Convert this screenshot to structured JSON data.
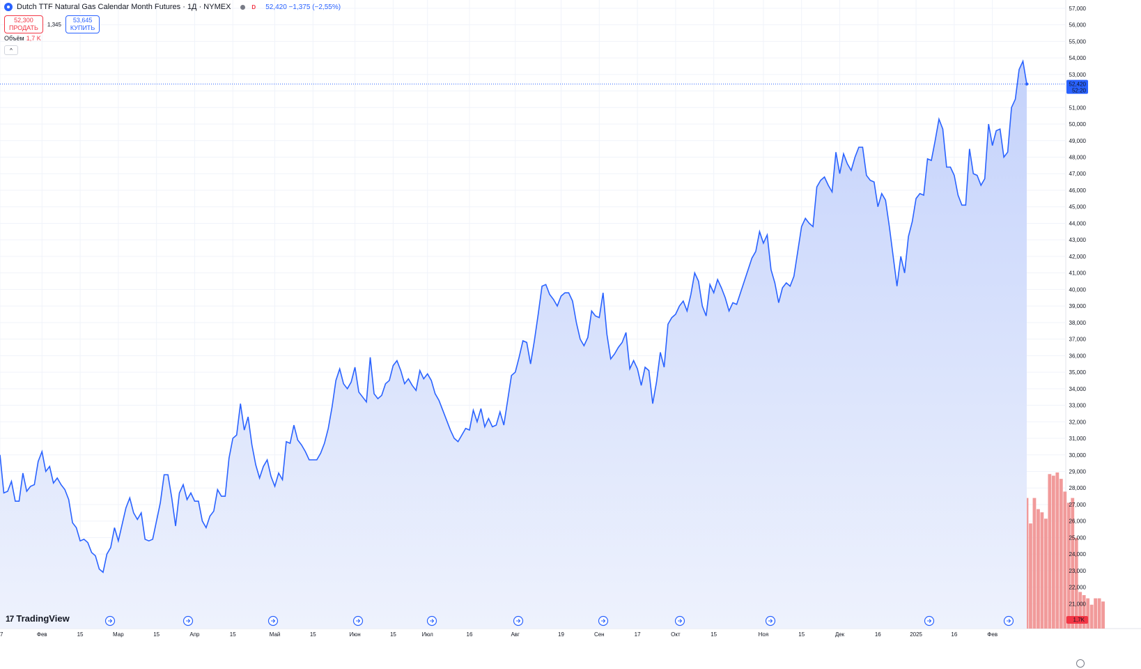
{
  "header": {
    "title": "Dutch TTF Natural Gas Calendar Month Futures · 1Д · NYMEX",
    "badge": "D",
    "price_info": "52,420  −1,375 (−2,55%)"
  },
  "trade": {
    "sell_price": "52,300",
    "sell_label": "ПРОДАТЬ",
    "spread": "1,345",
    "buy_price": "53,645",
    "buy_label": "КУПИТЬ"
  },
  "volume_legend": {
    "label": "Объём",
    "value": "1,7 K"
  },
  "collapse_glyph": "^",
  "logo": {
    "mark": "17",
    "text": "TradingView"
  },
  "price_axis": {
    "current_price": "52,420",
    "countdown": "52:20",
    "volume_tag": "1,7K"
  },
  "colors": {
    "line": "#2962ff",
    "area_top": "#c4d2fb",
    "area_bottom": "#eef2fd",
    "vol_up": "#7fcbc2",
    "vol_down": "#f19a9a",
    "current_price_tag": "#2962ff",
    "volume_tag": "#f23645",
    "grid": "#f0f3fa"
  },
  "chart_data": {
    "type": "area",
    "x_start": "17 янв",
    "y_range": [
      19500,
      57500
    ],
    "y_ticks": [
      "20,000",
      "21,000",
      "22,000",
      "23,000",
      "24,000",
      "25,000",
      "26,000",
      "27,000",
      "28,000",
      "29,000",
      "30,000",
      "31,000",
      "32,000",
      "33,000",
      "34,000",
      "35,000",
      "36,000",
      "37,000",
      "38,000",
      "39,000",
      "40,000",
      "41,000",
      "42,000",
      "43,000",
      "44,000",
      "45,000",
      "46,000",
      "47,000",
      "48,000",
      "49,000",
      "50,000",
      "51,000",
      "52,000",
      "53,000",
      "54,000",
      "55,000",
      "56,000",
      "57,000"
    ],
    "x_ticks": [
      {
        "label": "17",
        "i": 0
      },
      {
        "label": "Фев",
        "i": 11
      },
      {
        "label": "15",
        "i": 21
      },
      {
        "label": "Мар",
        "i": 31
      },
      {
        "label": "15",
        "i": 41
      },
      {
        "label": "Апр",
        "i": 51
      },
      {
        "label": "15",
        "i": 61
      },
      {
        "label": "Май",
        "i": 72
      },
      {
        "label": "15",
        "i": 82
      },
      {
        "label": "Июн",
        "i": 93
      },
      {
        "label": "15",
        "i": 103
      },
      {
        "label": "Июл",
        "i": 112
      },
      {
        "label": "16",
        "i": 123
      },
      {
        "label": "Авг",
        "i": 135
      },
      {
        "label": "19",
        "i": 147
      },
      {
        "label": "Сен",
        "i": 157
      },
      {
        "label": "17",
        "i": 167
      },
      {
        "label": "Окт",
        "i": 177
      },
      {
        "label": "15",
        "i": 187
      },
      {
        "label": "Ноя",
        "i": 200
      },
      {
        "label": "15",
        "i": 210
      },
      {
        "label": "Дек",
        "i": 220
      },
      {
        "label": "16",
        "i": 230
      },
      {
        "label": "2025",
        "i": 240
      },
      {
        "label": "16",
        "i": 250
      },
      {
        "label": "Фев",
        "i": 260
      }
    ],
    "close": [
      30000,
      27700,
      27800,
      28400,
      27200,
      27200,
      28900,
      27800,
      28100,
      28200,
      29600,
      30200,
      29000,
      29300,
      28300,
      28600,
      28200,
      27900,
      27300,
      25900,
      25600,
      24800,
      24900,
      24700,
      24100,
      23900,
      23100,
      22900,
      24000,
      24400,
      25600,
      24800,
      25800,
      26800,
      27400,
      26500,
      26100,
      26500,
      24900,
      24800,
      24900,
      26000,
      27100,
      28800,
      28800,
      27400,
      25700,
      27700,
      28200,
      27300,
      27700,
      27200,
      27200,
      26000,
      25600,
      26300,
      26600,
      27900,
      27500,
      27500,
      29800,
      31000,
      31200,
      33100,
      31500,
      32300,
      30600,
      29400,
      28600,
      29300,
      29700,
      28700,
      28100,
      28900,
      28500,
      30800,
      30700,
      31800,
      30900,
      30600,
      30200,
      29700,
      29700,
      29700,
      30100,
      30700,
      31600,
      32900,
      34500,
      35200,
      34300,
      34000,
      34400,
      35300,
      33800,
      33500,
      33200,
      35900,
      33700,
      33400,
      33600,
      34300,
      34500,
      35400,
      35700,
      35100,
      34300,
      34600,
      34200,
      33900,
      35100,
      34600,
      34900,
      34500,
      33700,
      33300,
      32700,
      32100,
      31500,
      31000,
      30800,
      31200,
      31600,
      31500,
      32700,
      32000,
      32800,
      31700,
      32200,
      31700,
      31800,
      32600,
      31800,
      33300,
      34800,
      35000,
      35900,
      36900,
      36800,
      35500,
      36900,
      38500,
      40200,
      40300,
      39700,
      39400,
      39000,
      39600,
      39800,
      39800,
      39300,
      38000,
      37000,
      36600,
      37100,
      38700,
      38400,
      38300,
      39800,
      37300,
      35800,
      36100,
      36500,
      36800,
      37400,
      35200,
      35700,
      35200,
      34200,
      35300,
      35100,
      33100,
      34400,
      36200,
      35300,
      37900,
      38300,
      38500,
      39000,
      39300,
      38700,
      39700,
      41000,
      40500,
      39000,
      38400,
      40300,
      39800,
      40600,
      40100,
      39500,
      38700,
      39200,
      39100,
      39800,
      40500,
      41200,
      41900,
      42300,
      43500,
      42800,
      43300,
      41200,
      40400,
      39200,
      40100,
      40400,
      40200,
      40800,
      42300,
      43800,
      44300,
      44000,
      43800,
      46200,
      46600,
      46800,
      46300,
      45900,
      48300,
      47000,
      48200,
      47600,
      47200,
      48000,
      48600,
      48600,
      46900,
      46600,
      46500,
      45000,
      45800,
      45400,
      43800,
      42000,
      40200,
      42000,
      41000,
      43200,
      44100,
      45500,
      45800,
      45700,
      47900,
      47800,
      49000,
      50300,
      49700,
      47400,
      47400,
      46900,
      45700,
      45100,
      45100,
      48500,
      47000,
      46900,
      46300,
      46700,
      50000,
      48700,
      49600,
      49700,
      48000,
      48300,
      51000,
      51500,
      53300,
      53800,
      52420
    ],
    "volume_k": [
      0.1,
      0.1,
      0.2,
      0.1,
      0.1,
      0.2,
      0.1,
      0.1,
      0.2,
      0.1,
      0.1,
      0.2,
      0.2,
      0.1,
      0.2,
      0.1,
      0.1,
      0.2,
      0.1,
      0.3,
      0.1,
      0.2,
      0.2,
      0.1,
      0.1,
      0.2,
      0.2,
      0.1,
      0.3,
      0.1,
      0.2,
      0.1,
      0.2,
      0.1,
      0.3,
      0.3,
      0.1,
      0.2,
      0.3,
      0.3,
      0.4,
      0.5,
      0.4,
      0.2,
      0.2,
      0.3,
      0.1,
      0.2,
      0.1,
      0.3,
      0.2,
      0.3,
      0.2,
      0.1,
      0.2,
      0.2,
      0.1,
      0.3,
      0.2,
      0.4,
      0.5,
      0.3,
      0.2,
      0.4,
      0.6,
      0.3,
      0.2,
      0.3,
      0.4,
      0.2,
      0.3,
      0.5,
      0.2,
      0.6,
      0.4,
      0.3,
      0.5,
      0.3,
      0.4,
      0.6,
      0.5,
      0.5,
      0.4,
      0.4,
      0.3,
      0.5,
      0.4,
      0.5,
      0.3,
      0.2,
      0.4,
      0.3,
      0.4,
      0.2,
      0.5,
      0.4,
      0.6,
      0.3,
      0.2,
      0.4,
      0.3,
      0.5,
      0.2,
      0.4,
      0.6,
      0.2,
      0.4,
      0.3,
      0.4,
      0.2,
      0.3,
      0.6,
      0.2,
      0.3,
      0.4,
      0.4,
      0.3,
      0.5,
      0.2,
      0.3,
      0.3,
      0.2,
      0.4,
      0.2,
      0.3,
      0.4,
      0.5,
      0.4,
      0.3,
      0.3,
      0.4,
      0.2,
      0.2,
      0.5,
      0.3,
      0.4,
      0.5,
      0.3,
      0.4,
      0.2,
      0.3,
      0.5,
      0.3,
      0.4,
      0.3,
      0.2,
      0.6,
      0.4,
      0.3,
      0.4,
      0.5,
      0.3,
      0.2,
      0.3,
      0.3,
      0.2,
      0.4,
      0.6,
      0.3,
      0.2,
      0.3,
      0.5,
      0.4,
      0.2,
      0.3,
      0.4,
      0.5,
      0.2,
      0.3,
      0.4,
      0.3,
      0.5,
      0.2,
      0.3,
      0.4,
      0.6,
      0.3,
      0.3,
      0.5,
      0.4,
      0.4,
      0.2,
      0.3,
      0.6,
      0.4,
      0.3,
      0.5,
      0.4,
      0.3,
      0.6,
      0.5,
      0.4,
      0.3,
      0.7,
      0.4,
      0.6,
      0.8,
      0.9,
      1.0,
      1.4,
      1.9,
      2.3,
      2.5,
      2.6,
      2.9,
      2.7,
      3.2,
      3.1,
      3.5,
      3.7,
      4.0,
      5.2,
      5.2,
      5.3,
      4.6,
      5.8,
      5.3,
      6.1,
      6.3,
      6.9,
      4.3,
      5.2,
      7.1,
      6.7,
      7.5,
      8.3,
      4.5,
      3.4,
      3.2,
      2.1,
      0.9,
      0.5,
      0.4,
      0.9,
      1.3,
      1.6,
      2.2,
      2.0,
      2.6,
      3.6,
      4.1,
      4.0,
      3.3,
      4.5,
      5.5,
      4.7,
      5.9,
      6.3,
      5.6,
      6.4,
      6.6,
      6.4,
      4.5,
      3.6,
      3.1,
      1.6,
      2.0,
      2.0,
      1.8,
      1.5,
      1.6,
      2.3,
      3.0,
      4.5,
      5.0,
      4.6,
      5.8,
      6.2,
      7.8,
      8.2,
      6.6,
      8.2,
      7.5,
      7.3,
      6.9,
      9.7,
      9.6,
      9.8,
      9.4,
      8.6,
      7.9,
      8.2,
      5.7,
      2.3,
      2.1,
      1.9,
      1.5,
      1.9,
      1.9,
      1.7
    ],
    "volume_up": [
      true,
      false,
      true,
      true,
      false,
      true,
      false,
      true,
      true,
      false,
      true,
      true,
      false,
      true,
      false,
      true,
      false,
      false,
      false,
      false,
      false,
      false,
      true,
      false,
      false,
      false,
      false,
      false,
      true,
      true,
      true,
      false,
      true,
      true,
      true,
      false,
      false,
      true,
      false,
      false,
      true,
      true,
      true,
      true,
      false,
      false,
      false,
      true,
      true,
      false,
      true,
      false,
      false,
      false,
      false,
      true,
      true,
      true,
      false,
      false,
      true,
      true,
      true,
      true,
      false,
      true,
      false,
      false,
      false,
      true,
      true,
      false,
      false,
      true,
      false,
      true,
      false,
      true,
      false,
      false,
      false,
      false,
      false,
      false,
      true,
      true,
      true,
      true,
      true,
      true,
      false,
      false,
      true,
      true,
      false,
      false,
      false,
      true,
      false,
      false,
      true,
      true,
      true,
      true,
      true,
      false,
      false,
      true,
      false,
      false,
      true,
      false,
      true,
      false,
      false,
      false,
      false,
      false,
      false,
      false,
      false,
      true,
      true,
      false,
      true,
      false,
      true,
      false,
      true,
      false,
      true,
      true,
      false,
      true,
      true,
      true,
      true,
      true,
      false,
      false,
      true,
      true,
      true,
      true,
      false,
      false,
      false,
      true,
      true,
      false,
      false,
      false,
      false,
      false,
      true,
      true,
      false,
      false,
      true,
      false,
      false,
      true,
      true,
      true,
      true,
      false,
      true,
      false,
      false,
      true,
      false,
      false,
      true,
      true,
      false,
      true,
      true,
      true,
      true,
      true,
      false,
      true,
      true,
      false,
      false,
      false,
      true,
      false,
      true,
      false,
      false,
      false,
      true,
      false,
      true,
      true,
      true,
      true,
      true,
      true,
      false,
      true,
      false,
      false,
      false,
      true,
      true,
      false,
      true,
      true,
      true,
      true,
      false,
      false,
      true,
      true,
      true,
      false,
      false,
      true,
      false,
      true,
      false,
      false,
      true,
      true,
      true,
      false,
      false,
      false,
      false,
      true,
      false,
      false,
      false,
      false,
      true,
      false,
      true,
      true,
      true,
      true,
      false,
      true,
      false,
      true,
      true,
      false,
      false,
      false,
      false,
      false,
      false,
      true,
      false,
      false,
      false,
      true,
      true,
      false,
      true,
      true,
      false,
      true,
      true,
      true,
      true,
      true,
      false
    ]
  }
}
